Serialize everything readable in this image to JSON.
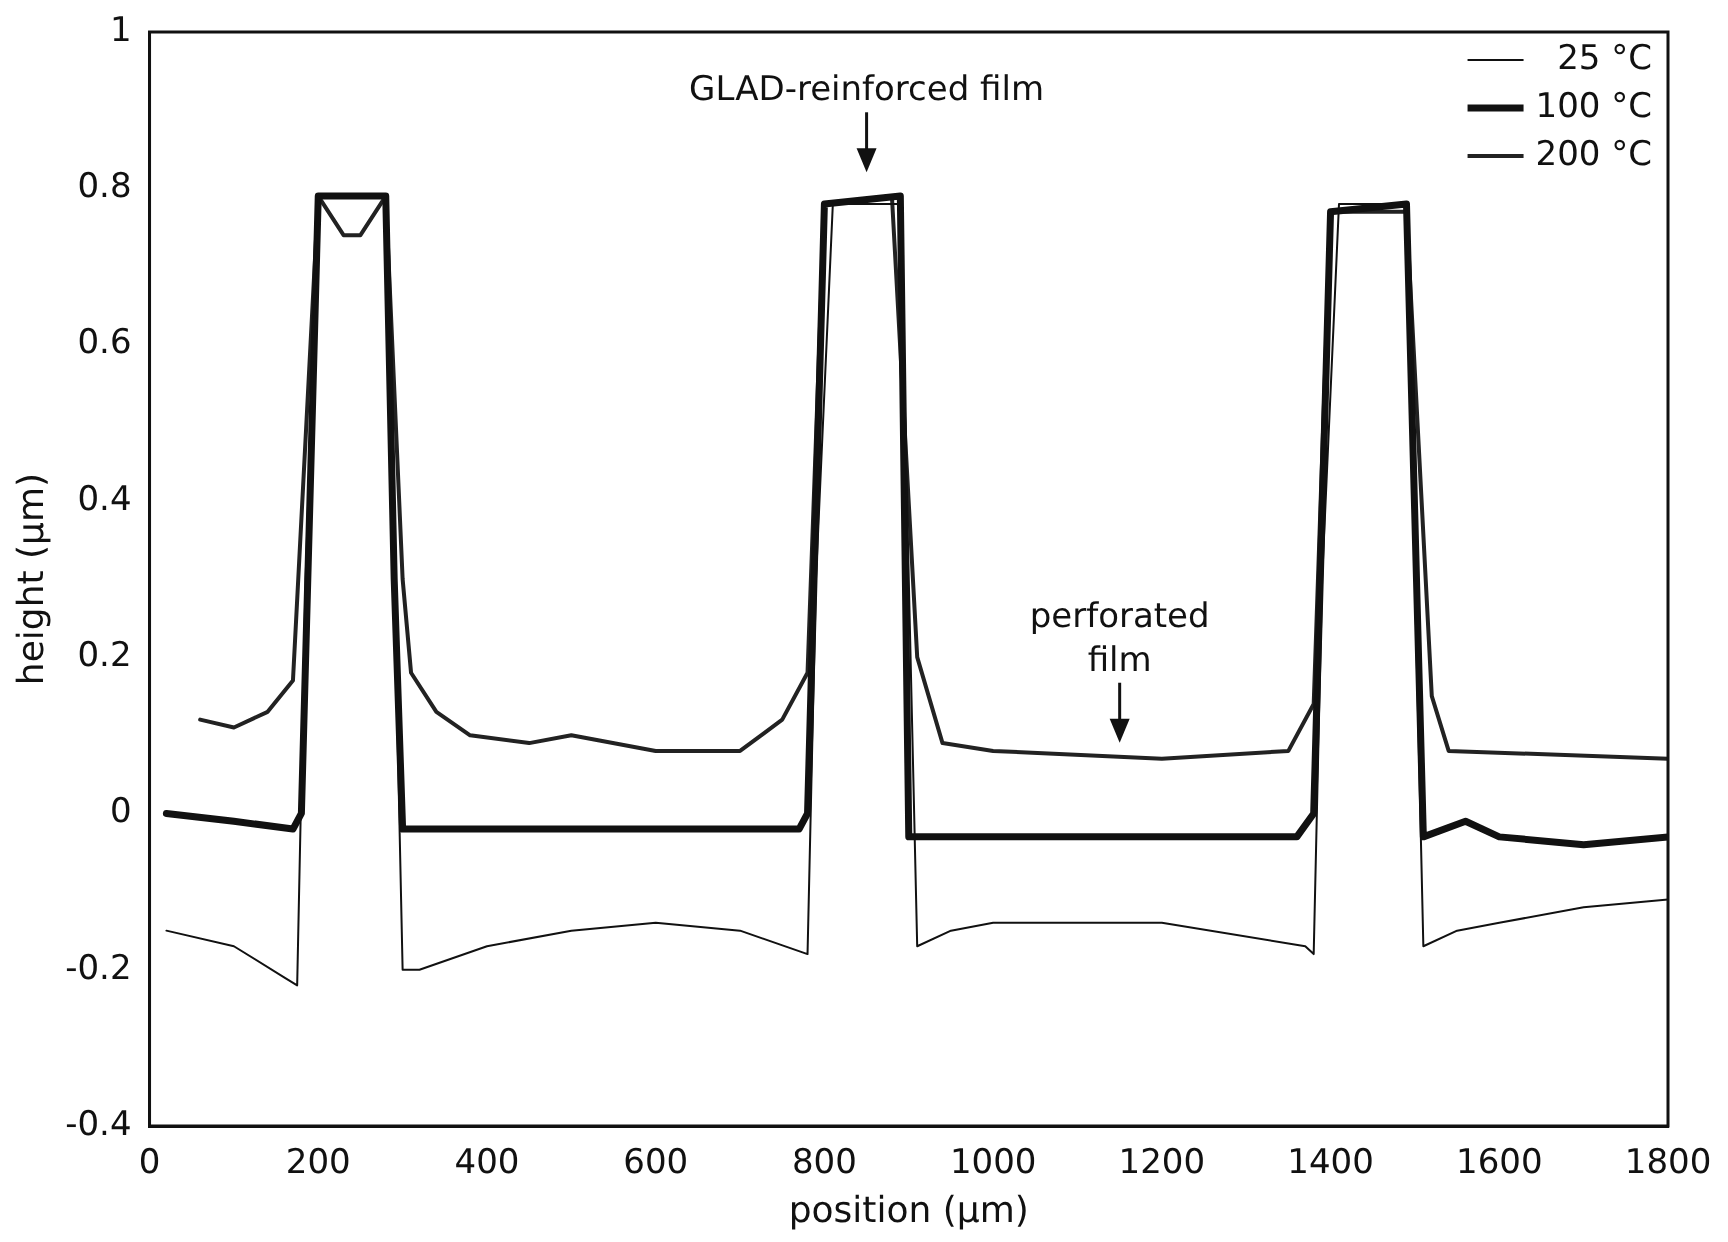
{
  "chart_data": {
    "type": "line",
    "xlabel": "position (µm)",
    "ylabel": "height (µm)",
    "xlim": [
      0,
      1800
    ],
    "xticks": [
      0,
      200,
      400,
      600,
      800,
      1000,
      1200,
      1400,
      1600,
      1800
    ],
    "ylim": [
      -0.4,
      1
    ],
    "yticks": [
      -0.4,
      -0.2,
      0,
      0.2,
      0.4,
      0.6,
      0.8,
      1
    ],
    "grid": false,
    "legend": "top right",
    "marker": "none",
    "line_style": "solid",
    "annotations": [
      {
        "text": "GLAD-reinforced film",
        "x": 850,
        "y": 0.8
      },
      {
        "text": "perforated\nfilm",
        "x": 1150,
        "y": 0.07
      }
    ],
    "series": [
      {
        "name": "25 °C",
        "color": "#111111",
        "x": [
          20,
          100,
          160,
          175,
          185,
          200,
          230,
          280,
          290,
          300,
          320,
          400,
          500,
          600,
          700,
          780,
          790,
          810,
          890,
          900,
          910,
          950,
          1000,
          1200,
          1370,
          1380,
          1390,
          1410,
          1490,
          1500,
          1510,
          1550,
          1600,
          1700,
          1800
        ],
        "values": [
          -0.15,
          -0.17,
          -0.21,
          -0.22,
          0.3,
          0.79,
          0.79,
          0.79,
          0.3,
          -0.2,
          -0.2,
          -0.17,
          -0.15,
          -0.14,
          -0.15,
          -0.18,
          0.3,
          0.78,
          0.78,
          0.3,
          -0.17,
          -0.15,
          -0.14,
          -0.14,
          -0.17,
          -0.18,
          0.3,
          0.78,
          0.78,
          0.3,
          -0.17,
          -0.15,
          -0.14,
          -0.12,
          -0.11
        ]
      },
      {
        "name": "100 °C",
        "color": "#111111",
        "x": [
          20,
          100,
          170,
          180,
          200,
          280,
          290,
          300,
          400,
          600,
          770,
          780,
          800,
          890,
          900,
          1000,
          1200,
          1360,
          1380,
          1400,
          1490,
          1510,
          1560,
          1600,
          1700,
          1800
        ],
        "values": [
          0,
          -0.01,
          -0.02,
          0,
          0.79,
          0.79,
          0.3,
          -0.02,
          -0.02,
          -0.02,
          -0.02,
          0,
          0.78,
          0.79,
          -0.03,
          -0.03,
          -0.03,
          -0.03,
          0,
          0.77,
          0.78,
          -0.03,
          -0.01,
          -0.03,
          -0.04,
          -0.03
        ]
      },
      {
        "name": "200 °C",
        "color": "#222222",
        "x": [
          60,
          100,
          140,
          170,
          200,
          230,
          250,
          280,
          300,
          310,
          340,
          380,
          450,
          500,
          600,
          700,
          750,
          780,
          800,
          880,
          910,
          940,
          1000,
          1200,
          1350,
          1380,
          1400,
          1490,
          1520,
          1540,
          1800
        ],
        "values": [
          0.12,
          0.11,
          0.13,
          0.17,
          0.79,
          0.74,
          0.74,
          0.79,
          0.3,
          0.18,
          0.13,
          0.1,
          0.09,
          0.1,
          0.08,
          0.08,
          0.12,
          0.18,
          0.78,
          0.79,
          0.2,
          0.09,
          0.08,
          0.07,
          0.08,
          0.14,
          0.77,
          0.77,
          0.15,
          0.08,
          0.07
        ]
      }
    ]
  }
}
